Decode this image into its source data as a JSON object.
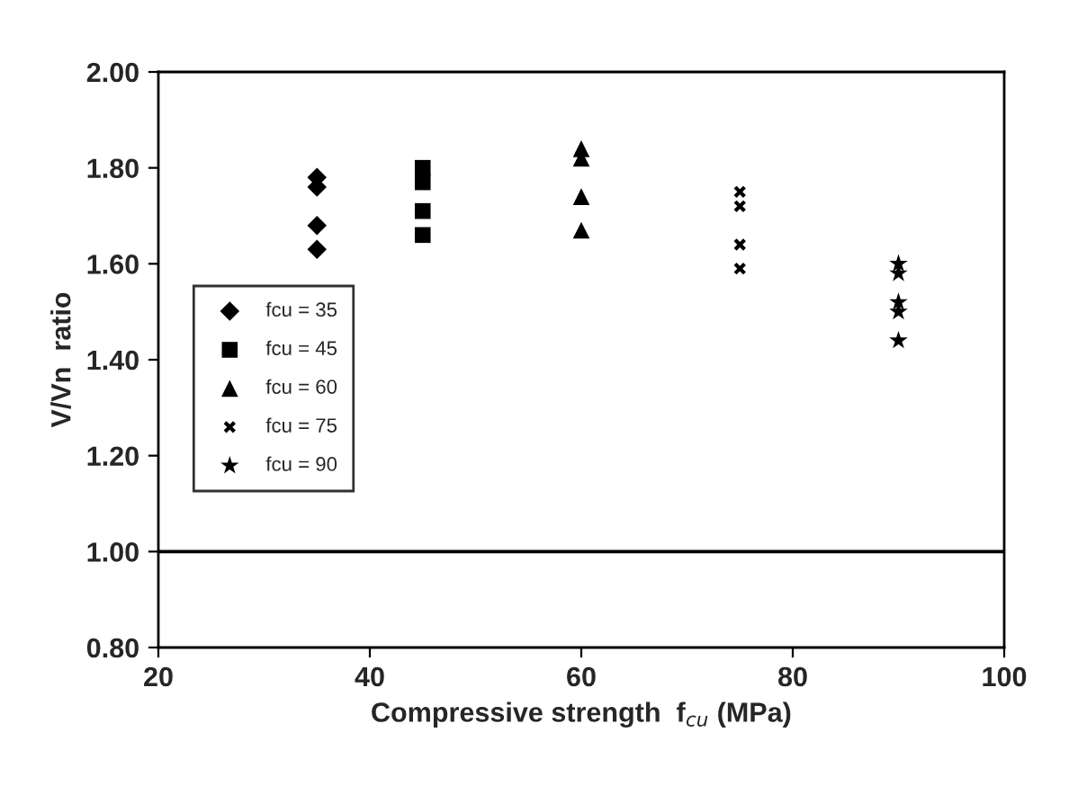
{
  "chart_data": {
    "type": "scatter",
    "xlabel": "Compressive strength  f$_{cu}$ (MPa)",
    "ylabel": "V/Vn  ratio",
    "xlim": [
      20,
      100
    ],
    "xticks": [
      20,
      40,
      60,
      80,
      100
    ],
    "ylim": [
      0.8,
      2.0
    ],
    "yticks": [
      {
        "value": 0.8,
        "label": "0.80"
      },
      {
        "value": 1.0,
        "label": "1.00"
      },
      {
        "value": 1.2,
        "label": "1.20"
      },
      {
        "value": 1.4,
        "label": "1.40"
      },
      {
        "value": 1.6,
        "label": "1.60"
      },
      {
        "value": 1.8,
        "label": "1.80"
      },
      {
        "value": 2.0,
        "label": "2.00"
      }
    ],
    "grid": false,
    "legend": "left",
    "ref_lines": [
      {
        "axis": "y",
        "value": 1.0,
        "color": "#000000",
        "line_style": "solid"
      }
    ],
    "series": [
      {
        "name": "fcu = 35",
        "color": "#000000",
        "marker": "diamond",
        "x": [
          35,
          35,
          35,
          35
        ],
        "values": [
          1.78,
          1.76,
          1.68,
          1.63
        ]
      },
      {
        "name": "fcu = 45",
        "color": "#000000",
        "marker": "square",
        "x": [
          45,
          45,
          45,
          45
        ],
        "values": [
          1.8,
          1.77,
          1.71,
          1.66
        ]
      },
      {
        "name": "fcu = 60",
        "color": "#000000",
        "marker": "triangle",
        "x": [
          60,
          60,
          60,
          60
        ],
        "values": [
          1.84,
          1.82,
          1.74,
          1.67
        ]
      },
      {
        "name": "fcu = 75",
        "color": "#000000",
        "marker": "cross",
        "x": [
          75,
          75,
          75,
          75
        ],
        "values": [
          1.75,
          1.72,
          1.64,
          1.59
        ]
      },
      {
        "name": "fcu = 90",
        "color": "#000000",
        "marker": "star",
        "x": [
          90,
          90,
          90,
          90,
          90
        ],
        "values": [
          1.6,
          1.58,
          1.52,
          1.5,
          1.44
        ]
      }
    ]
  }
}
